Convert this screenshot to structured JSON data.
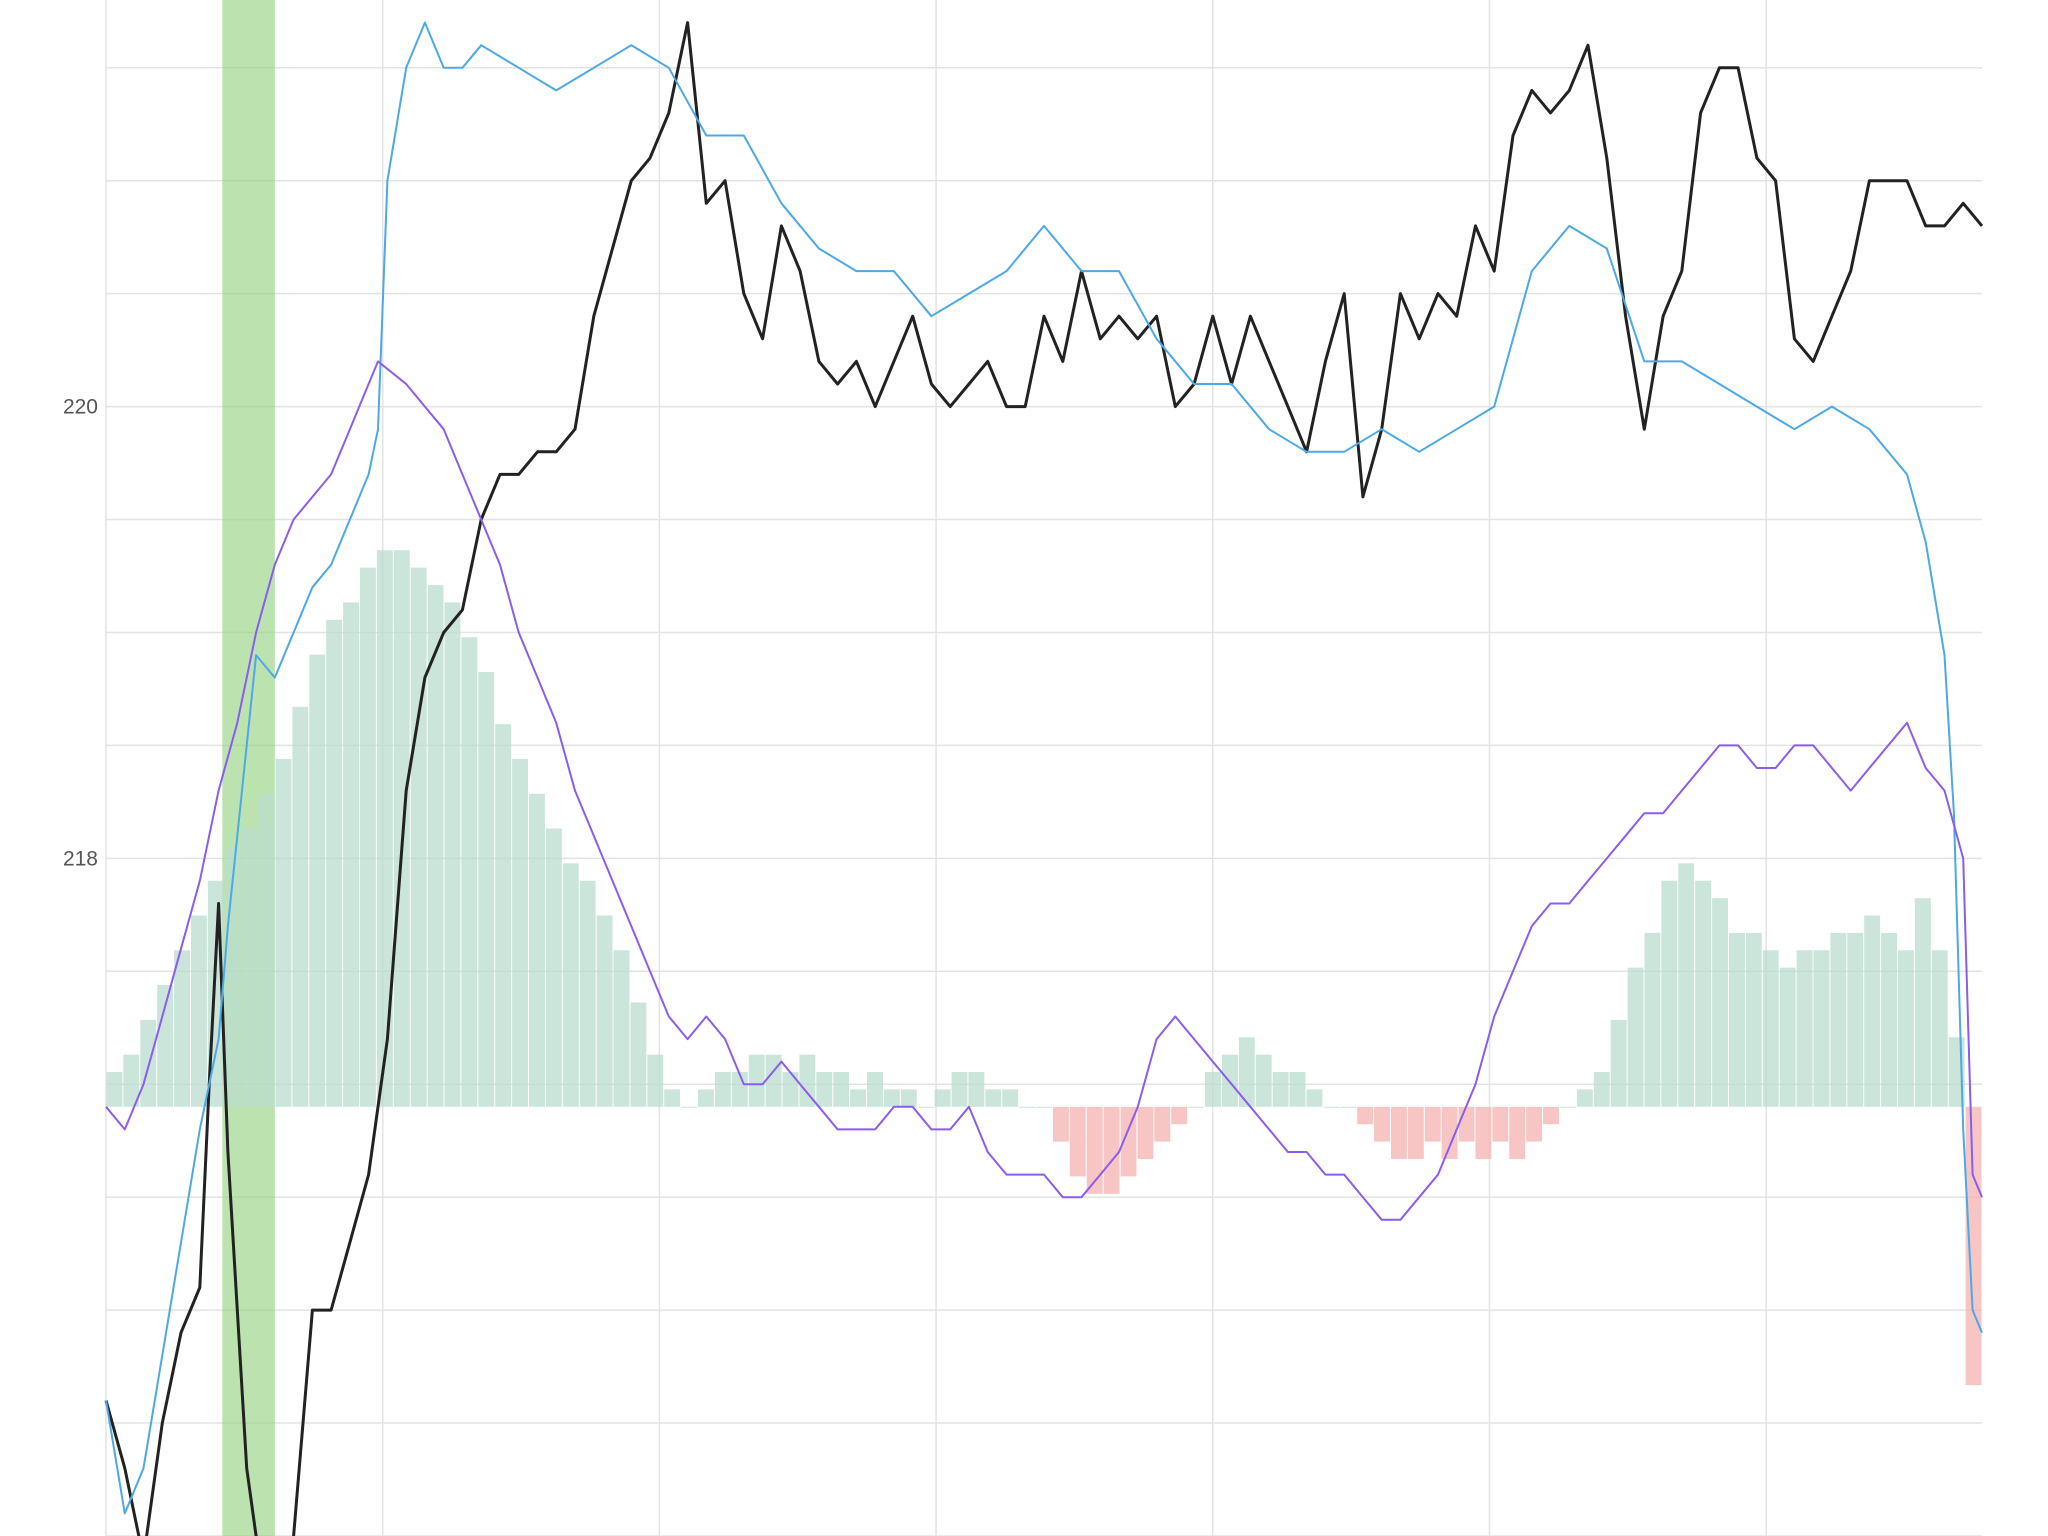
{
  "chart_data": {
    "type": "line",
    "title": "",
    "xlabel": "",
    "ylabel": "",
    "ylim": [
      215.0,
      221.8
    ],
    "y_ticks": [
      "218",
      "220"
    ],
    "y_tick_values": [
      218,
      220
    ],
    "grid": "on",
    "legend": "none",
    "highlight_band": {
      "x_start": 0.062,
      "x_end": 0.09,
      "color": "#8fd07a"
    },
    "series": [
      {
        "kind": "line",
        "color": "#222222",
        "points": [
          [
            0,
            215.6
          ],
          [
            0.01,
            215.3
          ],
          [
            0.02,
            214.9
          ],
          [
            0.03,
            215.5
          ],
          [
            0.04,
            215.9
          ],
          [
            0.05,
            216.1
          ],
          [
            0.055,
            217
          ],
          [
            0.06,
            217.8
          ],
          [
            0.065,
            216.7
          ],
          [
            0.07,
            216
          ],
          [
            0.075,
            215.3
          ],
          [
            0.08,
            215
          ],
          [
            0.085,
            214.9
          ],
          [
            0.09,
            214.7
          ],
          [
            0.1,
            215
          ],
          [
            0.11,
            216
          ],
          [
            0.12,
            216
          ],
          [
            0.13,
            216.3
          ],
          [
            0.14,
            216.6
          ],
          [
            0.15,
            217.2
          ],
          [
            0.16,
            218.3
          ],
          [
            0.17,
            218.8
          ],
          [
            0.18,
            219
          ],
          [
            0.19,
            219.1
          ],
          [
            0.2,
            219.5
          ],
          [
            0.21,
            219.7
          ],
          [
            0.22,
            219.7
          ],
          [
            0.23,
            219.8
          ],
          [
            0.24,
            219.8
          ],
          [
            0.25,
            219.9
          ],
          [
            0.26,
            220.4
          ],
          [
            0.27,
            220.7
          ],
          [
            0.28,
            221
          ],
          [
            0.29,
            221.1
          ],
          [
            0.3,
            221.3
          ],
          [
            0.31,
            221.7
          ],
          [
            0.32,
            220.9
          ],
          [
            0.33,
            221
          ],
          [
            0.34,
            220.5
          ],
          [
            0.35,
            220.3
          ],
          [
            0.36,
            220.8
          ],
          [
            0.37,
            220.6
          ],
          [
            0.38,
            220.2
          ],
          [
            0.39,
            220.1
          ],
          [
            0.4,
            220.2
          ],
          [
            0.41,
            220.0
          ],
          [
            0.42,
            220.2
          ],
          [
            0.43,
            220.4
          ],
          [
            0.44,
            220.1
          ],
          [
            0.45,
            220
          ],
          [
            0.46,
            220.1
          ],
          [
            0.47,
            220.2
          ],
          [
            0.48,
            220
          ],
          [
            0.49,
            220
          ],
          [
            0.5,
            220.4
          ],
          [
            0.51,
            220.2
          ],
          [
            0.52,
            220.6
          ],
          [
            0.53,
            220.3
          ],
          [
            0.54,
            220.4
          ],
          [
            0.55,
            220.3
          ],
          [
            0.56,
            220.4
          ],
          [
            0.57,
            220.0
          ],
          [
            0.58,
            220.1
          ],
          [
            0.59,
            220.4
          ],
          [
            0.6,
            220.1
          ],
          [
            0.61,
            220.4
          ],
          [
            0.62,
            220.2
          ],
          [
            0.63,
            220
          ],
          [
            0.64,
            219.8
          ],
          [
            0.65,
            220.2
          ],
          [
            0.66,
            220.5
          ],
          [
            0.67,
            219.6
          ],
          [
            0.68,
            219.9
          ],
          [
            0.69,
            220.5
          ],
          [
            0.7,
            220.3
          ],
          [
            0.71,
            220.5
          ],
          [
            0.72,
            220.4
          ],
          [
            0.73,
            220.8
          ],
          [
            0.74,
            220.6
          ],
          [
            0.75,
            221.2
          ],
          [
            0.76,
            221.4
          ],
          [
            0.77,
            221.3
          ],
          [
            0.78,
            221.4
          ],
          [
            0.79,
            221.6
          ],
          [
            0.8,
            221.1
          ],
          [
            0.81,
            220.4
          ],
          [
            0.82,
            219.9
          ],
          [
            0.83,
            220.4
          ],
          [
            0.84,
            220.6
          ],
          [
            0.85,
            221.3
          ],
          [
            0.86,
            221.5
          ],
          [
            0.87,
            221.5
          ],
          [
            0.88,
            221.1
          ],
          [
            0.89,
            221
          ],
          [
            0.9,
            220.3
          ],
          [
            0.91,
            220.2
          ],
          [
            0.92,
            220.4
          ],
          [
            0.93,
            220.6
          ],
          [
            0.94,
            221
          ],
          [
            0.95,
            221
          ],
          [
            0.96,
            221
          ],
          [
            0.97,
            220.8
          ],
          [
            0.98,
            220.8
          ],
          [
            0.99,
            220.9
          ],
          [
            1.0,
            220.8
          ]
        ]
      },
      {
        "kind": "line",
        "color": "#4ca8e8",
        "points": [
          [
            0,
            215.6
          ],
          [
            0.01,
            215.1
          ],
          [
            0.02,
            215.3
          ],
          [
            0.03,
            215.8
          ],
          [
            0.04,
            216.3
          ],
          [
            0.05,
            216.8
          ],
          [
            0.06,
            217.2
          ],
          [
            0.065,
            217.7
          ],
          [
            0.07,
            218.1
          ],
          [
            0.075,
            218.5
          ],
          [
            0.08,
            218.9
          ],
          [
            0.09,
            218.8
          ],
          [
            0.1,
            219
          ],
          [
            0.11,
            219.2
          ],
          [
            0.12,
            219.3
          ],
          [
            0.13,
            219.5
          ],
          [
            0.14,
            219.7
          ],
          [
            0.145,
            219.9
          ],
          [
            0.15,
            221
          ],
          [
            0.16,
            221.5
          ],
          [
            0.17,
            221.7
          ],
          [
            0.18,
            221.5
          ],
          [
            0.19,
            221.5
          ],
          [
            0.2,
            221.6
          ],
          [
            0.22,
            221.5
          ],
          [
            0.24,
            221.4
          ],
          [
            0.26,
            221.5
          ],
          [
            0.28,
            221.6
          ],
          [
            0.3,
            221.5
          ],
          [
            0.32,
            221.2
          ],
          [
            0.34,
            221.2
          ],
          [
            0.36,
            220.9
          ],
          [
            0.38,
            220.7
          ],
          [
            0.4,
            220.6
          ],
          [
            0.42,
            220.6
          ],
          [
            0.44,
            220.4
          ],
          [
            0.46,
            220.5
          ],
          [
            0.48,
            220.6
          ],
          [
            0.5,
            220.8
          ],
          [
            0.52,
            220.6
          ],
          [
            0.54,
            220.6
          ],
          [
            0.56,
            220.3
          ],
          [
            0.58,
            220.1
          ],
          [
            0.6,
            220.1
          ],
          [
            0.62,
            219.9
          ],
          [
            0.64,
            219.8
          ],
          [
            0.66,
            219.8
          ],
          [
            0.68,
            219.9
          ],
          [
            0.7,
            219.8
          ],
          [
            0.72,
            219.9
          ],
          [
            0.74,
            220
          ],
          [
            0.76,
            220.6
          ],
          [
            0.78,
            220.8
          ],
          [
            0.8,
            220.7
          ],
          [
            0.82,
            220.2
          ],
          [
            0.84,
            220.2
          ],
          [
            0.86,
            220.1
          ],
          [
            0.88,
            220
          ],
          [
            0.9,
            219.9
          ],
          [
            0.92,
            220
          ],
          [
            0.94,
            219.9
          ],
          [
            0.96,
            219.7
          ],
          [
            0.97,
            219.4
          ],
          [
            0.98,
            218.9
          ],
          [
            0.985,
            218.2
          ],
          [
            0.99,
            216.8
          ],
          [
            0.995,
            216.0
          ],
          [
            1.0,
            215.9
          ]
        ]
      },
      {
        "kind": "line",
        "color": "#8a5cf0",
        "points": [
          [
            0,
            216.9
          ],
          [
            0.01,
            216.8
          ],
          [
            0.02,
            217
          ],
          [
            0.03,
            217.3
          ],
          [
            0.04,
            217.6
          ],
          [
            0.05,
            217.9
          ],
          [
            0.06,
            218.3
          ],
          [
            0.07,
            218.6
          ],
          [
            0.08,
            219.0
          ],
          [
            0.09,
            219.3
          ],
          [
            0.1,
            219.5
          ],
          [
            0.11,
            219.6
          ],
          [
            0.12,
            219.7
          ],
          [
            0.13,
            219.9
          ],
          [
            0.14,
            220.1
          ],
          [
            0.145,
            220.2
          ],
          [
            0.16,
            220.1
          ],
          [
            0.17,
            220.0
          ],
          [
            0.18,
            219.9
          ],
          [
            0.19,
            219.7
          ],
          [
            0.2,
            219.5
          ],
          [
            0.21,
            219.3
          ],
          [
            0.22,
            219.0
          ],
          [
            0.23,
            218.8
          ],
          [
            0.24,
            218.6
          ],
          [
            0.25,
            218.3
          ],
          [
            0.26,
            218.1
          ],
          [
            0.27,
            217.9
          ],
          [
            0.28,
            217.7
          ],
          [
            0.29,
            217.5
          ],
          [
            0.3,
            217.3
          ],
          [
            0.31,
            217.2
          ],
          [
            0.32,
            217.3
          ],
          [
            0.33,
            217.2
          ],
          [
            0.34,
            217.0
          ],
          [
            0.35,
            217.0
          ],
          [
            0.36,
            217.1
          ],
          [
            0.37,
            217
          ],
          [
            0.38,
            216.9
          ],
          [
            0.39,
            216.8
          ],
          [
            0.4,
            216.8
          ],
          [
            0.41,
            216.8
          ],
          [
            0.42,
            216.9
          ],
          [
            0.43,
            216.9
          ],
          [
            0.44,
            216.8
          ],
          [
            0.45,
            216.8
          ],
          [
            0.46,
            216.9
          ],
          [
            0.47,
            216.7
          ],
          [
            0.48,
            216.6
          ],
          [
            0.49,
            216.6
          ],
          [
            0.5,
            216.6
          ],
          [
            0.51,
            216.5
          ],
          [
            0.52,
            216.5
          ],
          [
            0.53,
            216.6
          ],
          [
            0.54,
            216.7
          ],
          [
            0.55,
            216.9
          ],
          [
            0.56,
            217.2
          ],
          [
            0.57,
            217.3
          ],
          [
            0.58,
            217.2
          ],
          [
            0.59,
            217.1
          ],
          [
            0.6,
            217.0
          ],
          [
            0.61,
            216.9
          ],
          [
            0.62,
            216.8
          ],
          [
            0.63,
            216.7
          ],
          [
            0.64,
            216.7
          ],
          [
            0.65,
            216.6
          ],
          [
            0.66,
            216.6
          ],
          [
            0.67,
            216.5
          ],
          [
            0.68,
            216.4
          ],
          [
            0.69,
            216.4
          ],
          [
            0.7,
            216.5
          ],
          [
            0.71,
            216.6
          ],
          [
            0.72,
            216.8
          ],
          [
            0.73,
            217.0
          ],
          [
            0.74,
            217.3
          ],
          [
            0.75,
            217.5
          ],
          [
            0.76,
            217.7
          ],
          [
            0.77,
            217.8
          ],
          [
            0.78,
            217.8
          ],
          [
            0.79,
            217.9
          ],
          [
            0.8,
            218.0
          ],
          [
            0.81,
            218.1
          ],
          [
            0.82,
            218.2
          ],
          [
            0.83,
            218.2
          ],
          [
            0.84,
            218.3
          ],
          [
            0.85,
            218.4
          ],
          [
            0.86,
            218.5
          ],
          [
            0.87,
            218.5
          ],
          [
            0.88,
            218.4
          ],
          [
            0.89,
            218.4
          ],
          [
            0.9,
            218.5
          ],
          [
            0.91,
            218.5
          ],
          [
            0.92,
            218.4
          ],
          [
            0.93,
            218.3
          ],
          [
            0.94,
            218.4
          ],
          [
            0.95,
            218.5
          ],
          [
            0.96,
            218.6
          ],
          [
            0.97,
            218.4
          ],
          [
            0.98,
            218.3
          ],
          [
            0.99,
            218.0
          ],
          [
            0.995,
            216.6
          ],
          [
            1.0,
            216.5
          ]
        ]
      }
    ],
    "bars": {
      "baseline": 216.9,
      "positive_color": "#b9dccd",
      "negative_color": "#f4b3b0",
      "values": [
        0.2,
        0.3,
        0.5,
        0.7,
        0.9,
        1.1,
        1.3,
        1.5,
        1.6,
        1.8,
        2.0,
        2.3,
        2.6,
        2.8,
        2.9,
        3.1,
        3.2,
        3.2,
        3.1,
        3.0,
        2.9,
        2.7,
        2.5,
        2.2,
        2.0,
        1.8,
        1.6,
        1.4,
        1.3,
        1.1,
        0.9,
        0.6,
        0.3,
        0.1,
        0.0,
        0.1,
        0.2,
        0.2,
        0.3,
        0.3,
        0.2,
        0.3,
        0.2,
        0.2,
        0.1,
        0.2,
        0.1,
        0.1,
        0.0,
        0.1,
        0.2,
        0.2,
        0.1,
        0.1,
        0.0,
        0.0,
        -0.2,
        -0.4,
        -0.5,
        -0.5,
        -0.4,
        -0.3,
        -0.2,
        -0.1,
        0.0,
        0.2,
        0.3,
        0.4,
        0.3,
        0.2,
        0.2,
        0.1,
        0.0,
        0.0,
        -0.1,
        -0.2,
        -0.3,
        -0.3,
        -0.2,
        -0.3,
        -0.2,
        -0.3,
        -0.2,
        -0.3,
        -0.2,
        -0.1,
        0.0,
        0.1,
        0.2,
        0.5,
        0.8,
        1.0,
        1.3,
        1.4,
        1.3,
        1.2,
        1.0,
        1.0,
        0.9,
        0.8,
        0.9,
        0.9,
        1.0,
        1.0,
        1.1,
        1.0,
        0.9,
        1.2,
        0.9,
        0.4,
        -1.6
      ]
    }
  }
}
